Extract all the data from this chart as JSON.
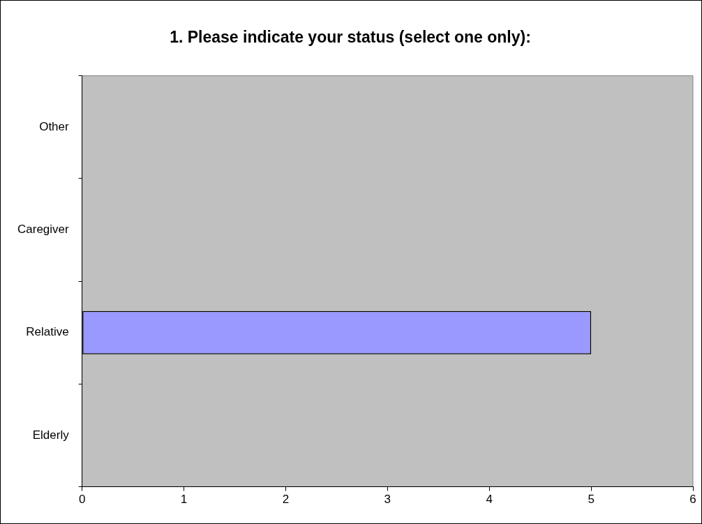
{
  "chart_data": {
    "type": "bar",
    "orientation": "horizontal",
    "title": "1. Please indicate your status (select one only):",
    "categories": [
      "Other",
      "Caregiver",
      "Relative",
      "Elderly"
    ],
    "values": [
      0,
      0,
      5,
      0
    ],
    "color": "#9999ff",
    "xlim": [
      0,
      6
    ],
    "xticks": [
      0,
      1,
      2,
      3,
      4,
      5,
      6
    ],
    "grid": false,
    "legend": false
  }
}
